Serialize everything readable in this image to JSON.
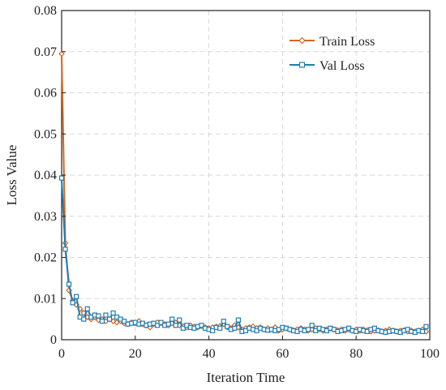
{
  "chart_data": {
    "type": "line",
    "xlabel": "Iteration Time",
    "ylabel": "Loss Value",
    "xlim": [
      0,
      100
    ],
    "ylim": [
      0,
      0.08
    ],
    "xticks": [
      "0",
      "20",
      "40",
      "60",
      "80",
      "100"
    ],
    "yticks": [
      "0",
      "0.01",
      "0.02",
      "0.03",
      "0.04",
      "0.05",
      "0.06",
      "0.07",
      "0.08"
    ],
    "grid": true,
    "legend_position": "top-right",
    "x": [
      0,
      1,
      2,
      3,
      4,
      5,
      6,
      7,
      8,
      9,
      10,
      11,
      12,
      13,
      14,
      15,
      16,
      17,
      18,
      19,
      20,
      21,
      22,
      23,
      24,
      25,
      26,
      27,
      28,
      29,
      30,
      31,
      32,
      33,
      34,
      35,
      36,
      37,
      38,
      39,
      40,
      41,
      42,
      43,
      44,
      45,
      46,
      47,
      48,
      49,
      50,
      51,
      52,
      53,
      54,
      55,
      56,
      57,
      58,
      59,
      60,
      61,
      62,
      63,
      64,
      65,
      66,
      67,
      68,
      69,
      70,
      71,
      72,
      73,
      74,
      75,
      76,
      77,
      78,
      79,
      80,
      81,
      82,
      83,
      84,
      85,
      86,
      87,
      88,
      89,
      90,
      91,
      92,
      93,
      94,
      95,
      96,
      97,
      98,
      99
    ],
    "series": [
      {
        "name": "Train Loss",
        "color": "#d4671f",
        "marker": "diamond",
        "values": [
          0.0695,
          0.0235,
          0.012,
          0.0095,
          0.0085,
          0.0075,
          0.0065,
          0.0055,
          0.005,
          0.0055,
          0.0048,
          0.005,
          0.0045,
          0.005,
          0.0045,
          0.0042,
          0.0045,
          0.004,
          0.0038,
          0.0042,
          0.004,
          0.0045,
          0.0038,
          0.0035,
          0.003,
          0.0038,
          0.0042,
          0.004,
          0.0038,
          0.0035,
          0.004,
          0.0042,
          0.0035,
          0.0033,
          0.003,
          0.0035,
          0.0032,
          0.003,
          0.0033,
          0.003,
          0.0028,
          0.003,
          0.0032,
          0.0033,
          0.0038,
          0.003,
          0.0028,
          0.0035,
          0.003,
          0.0025,
          0.0028,
          0.003,
          0.0032,
          0.0028,
          0.003,
          0.0025,
          0.0028,
          0.0025,
          0.003,
          0.0022,
          0.0025,
          0.0028,
          0.0025,
          0.0023,
          0.0025,
          0.0028,
          0.0025,
          0.0022,
          0.0025,
          0.0028,
          0.0025,
          0.0022,
          0.0025,
          0.0027,
          0.0025,
          0.0023,
          0.0025,
          0.0022,
          0.0025,
          0.0022,
          0.0025,
          0.0022,
          0.0025,
          0.0023,
          0.002,
          0.0022,
          0.0023,
          0.002,
          0.0022,
          0.0025,
          0.0022,
          0.002,
          0.0022,
          0.0023,
          0.002,
          0.0022,
          0.002,
          0.0022,
          0.0025,
          0.002
        ]
      },
      {
        "name": "Val Loss",
        "color": "#1f7cb4",
        "marker": "square",
        "values": [
          0.0393,
          0.022,
          0.0135,
          0.009,
          0.0105,
          0.0055,
          0.005,
          0.0075,
          0.0055,
          0.006,
          0.0058,
          0.0045,
          0.006,
          0.005,
          0.0065,
          0.0055,
          0.005,
          0.0045,
          0.0038,
          0.004,
          0.0042,
          0.0038,
          0.004,
          0.0035,
          0.0038,
          0.004,
          0.0035,
          0.0042,
          0.0035,
          0.0038,
          0.005,
          0.0035,
          0.0048,
          0.0028,
          0.0035,
          0.003,
          0.0028,
          0.0032,
          0.0035,
          0.0028,
          0.0025,
          0.0022,
          0.003,
          0.0028,
          0.0045,
          0.0032,
          0.0025,
          0.0028,
          0.0048,
          0.002,
          0.0022,
          0.0028,
          0.0025,
          0.0022,
          0.0028,
          0.0025,
          0.0023,
          0.0025,
          0.0022,
          0.0025,
          0.003,
          0.0028,
          0.0025,
          0.0022,
          0.002,
          0.0025,
          0.0022,
          0.0025,
          0.0035,
          0.0022,
          0.0028,
          0.0025,
          0.0022,
          0.0028,
          0.0025,
          0.002,
          0.0022,
          0.0025,
          0.0028,
          0.0022,
          0.002,
          0.0025,
          0.0022,
          0.002,
          0.0025,
          0.0028,
          0.0022,
          0.002,
          0.0018,
          0.002,
          0.0022,
          0.002,
          0.0018,
          0.0022,
          0.0025,
          0.002,
          0.0018,
          0.0022,
          0.002,
          0.0032
        ]
      }
    ]
  }
}
